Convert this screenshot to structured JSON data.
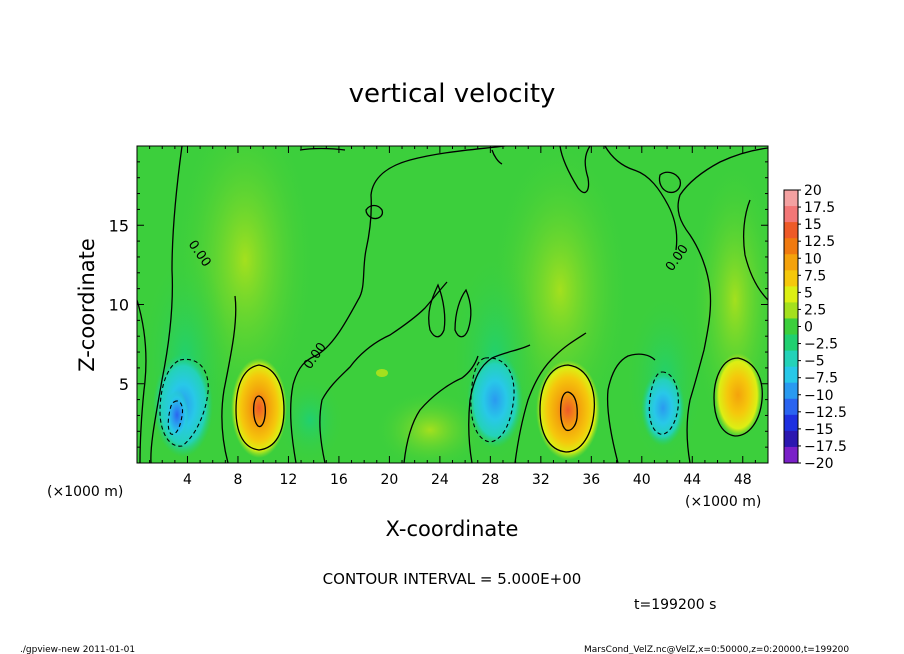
{
  "chart_data": {
    "type": "heatmap",
    "title": "vertical velocity",
    "xlabel": "X-coordinate",
    "ylabel": "Z-coordinate",
    "x_unit": "(×1000 m)",
    "z_unit": "(×1000 m)",
    "xlim": [
      0,
      50
    ],
    "ylim": [
      0,
      20
    ],
    "x_ticks": [
      "4",
      "8",
      "12",
      "16",
      "20",
      "24",
      "28",
      "32",
      "36",
      "40",
      "44",
      "48"
    ],
    "y_ticks": [
      "5",
      "10",
      "15"
    ],
    "colorbar_levels": [
      "20",
      "17.5",
      "15",
      "12.5",
      "10",
      "7.5",
      "5",
      "2.5",
      "0",
      "−2.5",
      "−5",
      "−7.5",
      "−10",
      "−12.5",
      "−15",
      "−17.5",
      "−20"
    ],
    "colorbar_colors": [
      "#f4a1a1",
      "#f37777",
      "#ee5a28",
      "#f07a10",
      "#f4a20c",
      "#f5c80c",
      "#dcef14",
      "#a4e01e",
      "#3ccf3c",
      "#20d070",
      "#24d2b8",
      "#28c8e8",
      "#2a9af0",
      "#2a64f0",
      "#1e30e0",
      "#2c18b0",
      "#7a20c8"
    ],
    "contour_labels": [
      "0.00",
      "0.00",
      "0.00"
    ],
    "contour_interval": "CONTOUR INTERVAL = 5.000E+00",
    "time_label": "t=199200 s",
    "updraft_maxima": [
      {
        "x": 10,
        "z": 3.5,
        "w": 9
      },
      {
        "x": 34,
        "z": 3.3,
        "w": 10
      },
      {
        "x": 48,
        "z": 4,
        "w": 6
      }
    ],
    "downdraft_minima": [
      {
        "x": 3.2,
        "z": 3,
        "w": -9
      },
      {
        "x": 29,
        "z": 3,
        "w": -6
      },
      {
        "x": 42,
        "z": 3.5,
        "w": -6
      }
    ],
    "grid": false,
    "legend_position": "right"
  },
  "footer": {
    "left": "./gpview-new  2011-01-01",
    "right": "MarsCond_VelZ.nc@VelZ,x=0:50000,z=0:20000,t=199200"
  }
}
